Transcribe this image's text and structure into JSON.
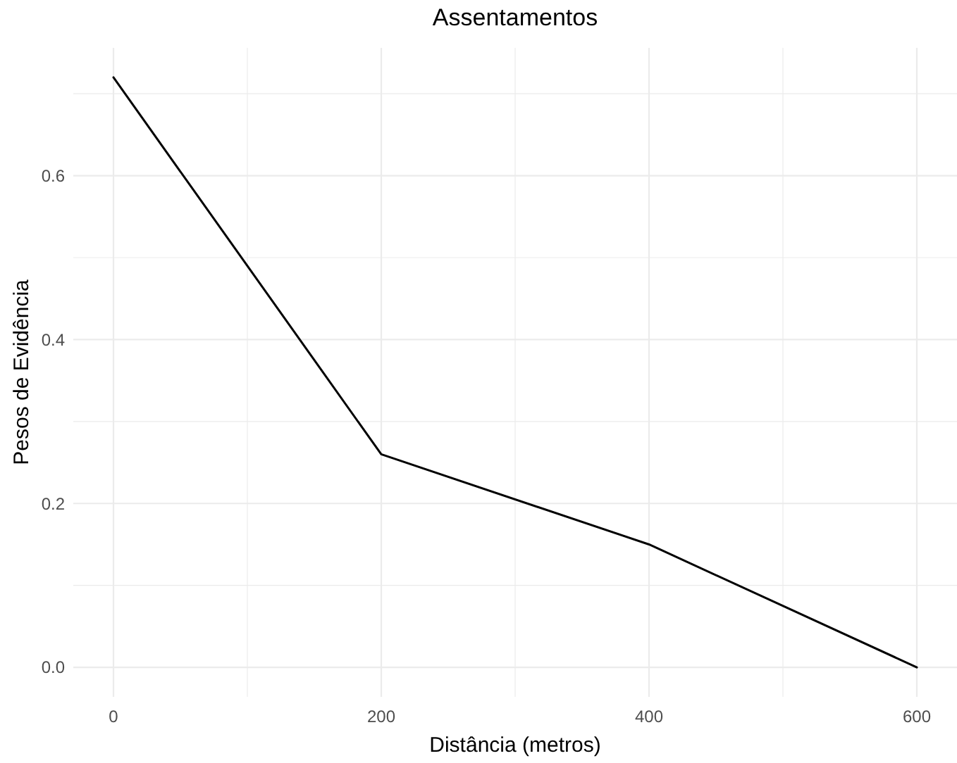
{
  "chart_data": {
    "type": "line",
    "title": "Assentamentos",
    "xlabel": "Distância (metros)",
    "ylabel": "Pesos de Evidência",
    "x": [
      0,
      200,
      400,
      600
    ],
    "series": [
      {
        "color": "#000000",
        "values": [
          0.72,
          0.26,
          0.15,
          0.0
        ]
      }
    ],
    "xlim": [
      -30,
      630
    ],
    "ylim": [
      -0.036,
      0.756
    ],
    "xticks": [
      0,
      {
        "value": 100,
        "label": null
      },
      200,
      {
        "value": 300,
        "label": null
      },
      400,
      {
        "value": 500,
        "label": null
      },
      600
    ],
    "yticks": [
      {
        "value": 0,
        "label": "0.0"
      },
      {
        "value": 0.1,
        "label": null
      },
      {
        "value": 0.2,
        "label": "0.2"
      },
      {
        "value": 0.3,
        "label": null
      },
      {
        "value": 0.4,
        "label": "0.4"
      },
      {
        "value": 0.5,
        "label": null
      },
      {
        "value": 0.6,
        "label": "0.6"
      },
      {
        "value": 0.7,
        "label": null
      }
    ],
    "grid": true,
    "marker": "none",
    "line_style": "solid"
  }
}
